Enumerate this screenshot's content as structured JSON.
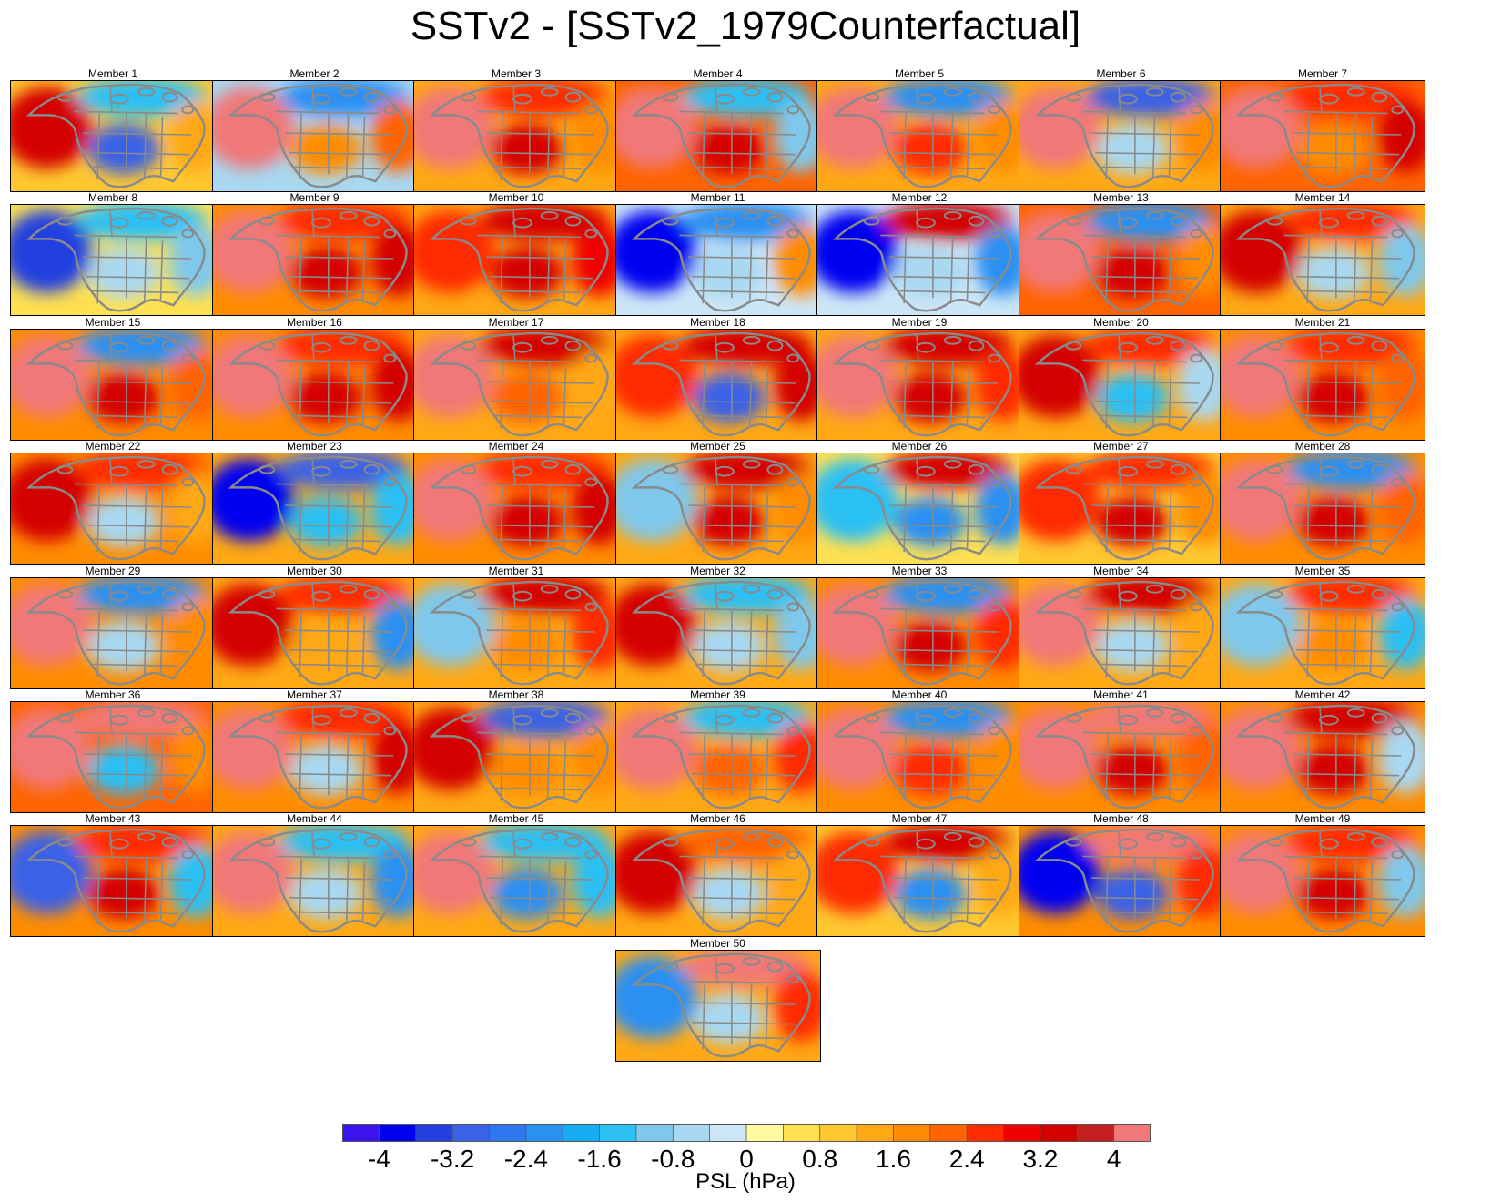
{
  "title": "SSTv2 - [SSTv2_1979Counterfactual]",
  "panels": [
    {
      "label": "Member 1",
      "west": 3.2,
      "east": 1.2,
      "north": -1.4,
      "center": -3.2,
      "south": 1.0
    },
    {
      "label": "Member 2",
      "west": 4.0,
      "east": 2.0,
      "north": -2.4,
      "center": 1.6,
      "south": -0.8
    },
    {
      "label": "Member 3",
      "west": 4.0,
      "east": 1.6,
      "north": 2.4,
      "center": 3.2,
      "south": 1.2
    },
    {
      "label": "Member 4",
      "west": 4.0,
      "east": -1.0,
      "north": -1.6,
      "center": 3.2,
      "south": 2.0
    },
    {
      "label": "Member 5",
      "west": 4.0,
      "east": 1.6,
      "north": -2.4,
      "center": 2.4,
      "south": 1.2
    },
    {
      "label": "Member 6",
      "west": 4.0,
      "east": 1.6,
      "north": -3.2,
      "center": -0.8,
      "south": 1.2
    },
    {
      "label": "Member 7",
      "west": 4.0,
      "east": 3.2,
      "north": 2.4,
      "center": 1.6,
      "south": 2.0
    },
    {
      "label": "Member 8",
      "west": -3.6,
      "east": -1.2,
      "north": -1.6,
      "center": -0.8,
      "south": 0.4
    },
    {
      "label": "Member 9",
      "west": 4.0,
      "east": 3.2,
      "north": 2.4,
      "center": 3.2,
      "south": 1.6
    },
    {
      "label": "Member 10",
      "west": 2.4,
      "east": 2.8,
      "north": 3.2,
      "center": 3.2,
      "south": 1.2
    },
    {
      "label": "Member 11",
      "west": -4.0,
      "east": 1.6,
      "north": -2.4,
      "center": -0.8,
      "south": -0.4
    },
    {
      "label": "Member 12",
      "west": -4.0,
      "east": -2.4,
      "north": 3.2,
      "center": -0.8,
      "south": -0.4
    },
    {
      "label": "Member 13",
      "west": 4.0,
      "east": 1.6,
      "north": -2.4,
      "center": 3.2,
      "south": 2.0
    },
    {
      "label": "Member 14",
      "west": 3.2,
      "east": -1.2,
      "north": 2.4,
      "center": -0.8,
      "south": 1.2
    },
    {
      "label": "Member 15",
      "west": 4.0,
      "east": 2.0,
      "north": -2.4,
      "center": 3.2,
      "south": 1.6
    },
    {
      "label": "Member 16",
      "west": 4.0,
      "east": 3.2,
      "north": 2.4,
      "center": 3.2,
      "south": 1.6
    },
    {
      "label": "Member 17",
      "west": 4.0,
      "east": 1.2,
      "north": 3.2,
      "center": 2.0,
      "south": 1.2
    },
    {
      "label": "Member 18",
      "west": 2.4,
      "east": 3.2,
      "north": 3.2,
      "center": -3.2,
      "south": 1.2
    },
    {
      "label": "Member 19",
      "west": 4.0,
      "east": 2.4,
      "north": 3.2,
      "center": 3.2,
      "south": 1.2
    },
    {
      "label": "Member 20",
      "west": 3.2,
      "east": -0.8,
      "north": 2.4,
      "center": -1.6,
      "south": 1.2
    },
    {
      "label": "Member 21",
      "west": 4.0,
      "east": 2.0,
      "north": 2.4,
      "center": 3.2,
      "south": 1.6
    },
    {
      "label": "Member 22",
      "west": 3.2,
      "east": 1.2,
      "north": 2.4,
      "center": -0.8,
      "south": 1.6
    },
    {
      "label": "Member 23",
      "west": -4.0,
      "east": -1.6,
      "north": -3.2,
      "center": -1.6,
      "south": 1.2
    },
    {
      "label": "Member 24",
      "west": 4.0,
      "east": 3.2,
      "north": 2.4,
      "center": 3.2,
      "south": 1.6
    },
    {
      "label": "Member 25",
      "west": -1.2,
      "east": 1.6,
      "north": 3.2,
      "center": 3.2,
      "south": 1.2
    },
    {
      "label": "Member 26",
      "west": -1.6,
      "east": -2.4,
      "north": 3.2,
      "center": -2.4,
      "south": 0.4
    },
    {
      "label": "Member 27",
      "west": 2.4,
      "east": 1.6,
      "north": 2.4,
      "center": 3.2,
      "south": 0.8
    },
    {
      "label": "Member 28",
      "west": 4.0,
      "east": 2.0,
      "north": -2.4,
      "center": 3.2,
      "south": 1.6
    },
    {
      "label": "Member 29",
      "west": 4.0,
      "east": 1.6,
      "north": -2.4,
      "center": -0.8,
      "south": 1.6
    },
    {
      "label": "Member 30",
      "west": 3.2,
      "east": -2.4,
      "north": 2.4,
      "center": 1.2,
      "south": 1.2
    },
    {
      "label": "Member 31",
      "west": -1.2,
      "east": 2.4,
      "north": 3.2,
      "center": 1.6,
      "south": 1.2
    },
    {
      "label": "Member 32",
      "west": 3.2,
      "east": -1.2,
      "north": -1.6,
      "center": -0.8,
      "south": 1.2
    },
    {
      "label": "Member 33",
      "west": 4.0,
      "east": 2.4,
      "north": -2.4,
      "center": 3.2,
      "south": 1.6
    },
    {
      "label": "Member 34",
      "west": 4.0,
      "east": 1.2,
      "north": 3.2,
      "center": -0.8,
      "south": 1.2
    },
    {
      "label": "Member 35",
      "west": -1.2,
      "east": -1.6,
      "north": 2.4,
      "center": 1.6,
      "south": 1.2
    },
    {
      "label": "Member 36",
      "west": 4.0,
      "east": 1.6,
      "north": 4.0,
      "center": -1.6,
      "south": 2.0
    },
    {
      "label": "Member 37",
      "west": 4.0,
      "east": 3.2,
      "north": 2.4,
      "center": -0.8,
      "south": 1.6
    },
    {
      "label": "Member 38",
      "west": 3.2,
      "east": 1.6,
      "north": -3.2,
      "center": 1.6,
      "south": 1.2
    },
    {
      "label": "Member 39",
      "west": 4.0,
      "east": 2.4,
      "north": -1.6,
      "center": 2.0,
      "south": 1.2
    },
    {
      "label": "Member 40",
      "west": 4.0,
      "east": 1.6,
      "north": -2.4,
      "center": 2.4,
      "south": 1.6
    },
    {
      "label": "Member 41",
      "west": 4.0,
      "east": 2.0,
      "north": 4.0,
      "center": 3.2,
      "south": 1.6
    },
    {
      "label": "Member 42",
      "west": 4.0,
      "east": -0.8,
      "north": 3.2,
      "center": 3.2,
      "south": 1.6
    },
    {
      "label": "Member 43",
      "west": -3.2,
      "east": -1.6,
      "north": 2.4,
      "center": 3.2,
      "south": 1.6
    },
    {
      "label": "Member 44",
      "west": 4.0,
      "east": -2.4,
      "north": -1.6,
      "center": -0.8,
      "south": 1.2
    },
    {
      "label": "Member 45",
      "west": 4.0,
      "east": -1.6,
      "north": -1.6,
      "center": -2.4,
      "south": 1.2
    },
    {
      "label": "Member 46",
      "west": 3.2,
      "east": 1.2,
      "north": 2.0,
      "center": -0.8,
      "south": 1.2
    },
    {
      "label": "Member 47",
      "west": 2.4,
      "east": 1.2,
      "north": 3.2,
      "center": -2.4,
      "south": 0.8
    },
    {
      "label": "Member 48",
      "west": -4.0,
      "east": 2.4,
      "north": 4.0,
      "center": -3.2,
      "south": 1.6
    },
    {
      "label": "Member 49",
      "west": 4.0,
      "east": -1.2,
      "north": 2.4,
      "center": 3.2,
      "south": 1.6
    },
    {
      "label": "Member 50",
      "west": -2.4,
      "east": 2.4,
      "north": 4.0,
      "center": -0.8,
      "south": 1.2
    }
  ],
  "colorbar": {
    "colors": [
      "#3c14f0",
      "#0000f0",
      "#2340e0",
      "#3a62e6",
      "#2f78f0",
      "#2a90f2",
      "#18acf4",
      "#2cc0f4",
      "#7fc8ec",
      "#a8d8f2",
      "#cce6f6",
      "#fffaa0",
      "#ffe050",
      "#ffc830",
      "#ffa814",
      "#ff8c00",
      "#ff6400",
      "#ff2c00",
      "#f00000",
      "#d40000",
      "#c41e1e",
      "#f07878"
    ],
    "tick_labels": [
      "-4",
      "-3.2",
      "-2.4",
      "-1.6",
      "-0.8",
      "0",
      "0.8",
      "1.6",
      "2.4",
      "3.2",
      "4"
    ],
    "label": "PSL (hPa)",
    "min": -4.4,
    "max": 4.4,
    "step": 0.4
  }
}
